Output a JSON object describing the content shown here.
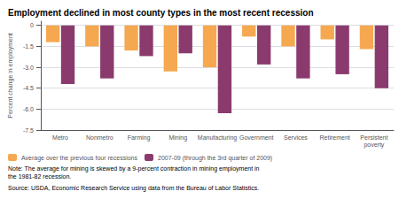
{
  "chart_data": {
    "type": "bar",
    "title": "Employment declined in most county types in the most recent recession",
    "ylabel": "Percent change in employment",
    "categories": [
      "Metro",
      "Nonmetro",
      "Farming",
      "Mining",
      "Manufacturing",
      "Government",
      "Services",
      "Retirement",
      "Persistent\npoverty"
    ],
    "series": [
      {
        "name": "Average over the previous four recessions",
        "color": "#F5A850",
        "values": [
          -1.2,
          -1.5,
          -1.8,
          -3.3,
          -3.0,
          -0.8,
          -1.5,
          -1.0,
          -1.7
        ]
      },
      {
        "name": "2007-09 (through the 3rd quarter of 2009)",
        "color": "#8B3A6E",
        "values": [
          -4.2,
          -3.8,
          -2.2,
          -2.0,
          -6.3,
          -2.8,
          -3.8,
          -3.5,
          -4.5
        ]
      }
    ],
    "ylim": [
      -7.5,
      0.3
    ],
    "yticks": [
      0,
      -1.5,
      {
        "value": -3.0,
        "label": "-3.0"
      },
      -4.5,
      {
        "value": -6.0,
        "label": "-6.0"
      },
      -7.5
    ],
    "grid": true,
    "legend": "lower left",
    "annotations": [
      "Note: The average for mining is skewed by a 9-percent contraction in mining employment in\nthe 1981-82 recession.",
      "Source: USDA, Economic Research Service using data from the Bureau of Labor Statistics."
    ]
  }
}
